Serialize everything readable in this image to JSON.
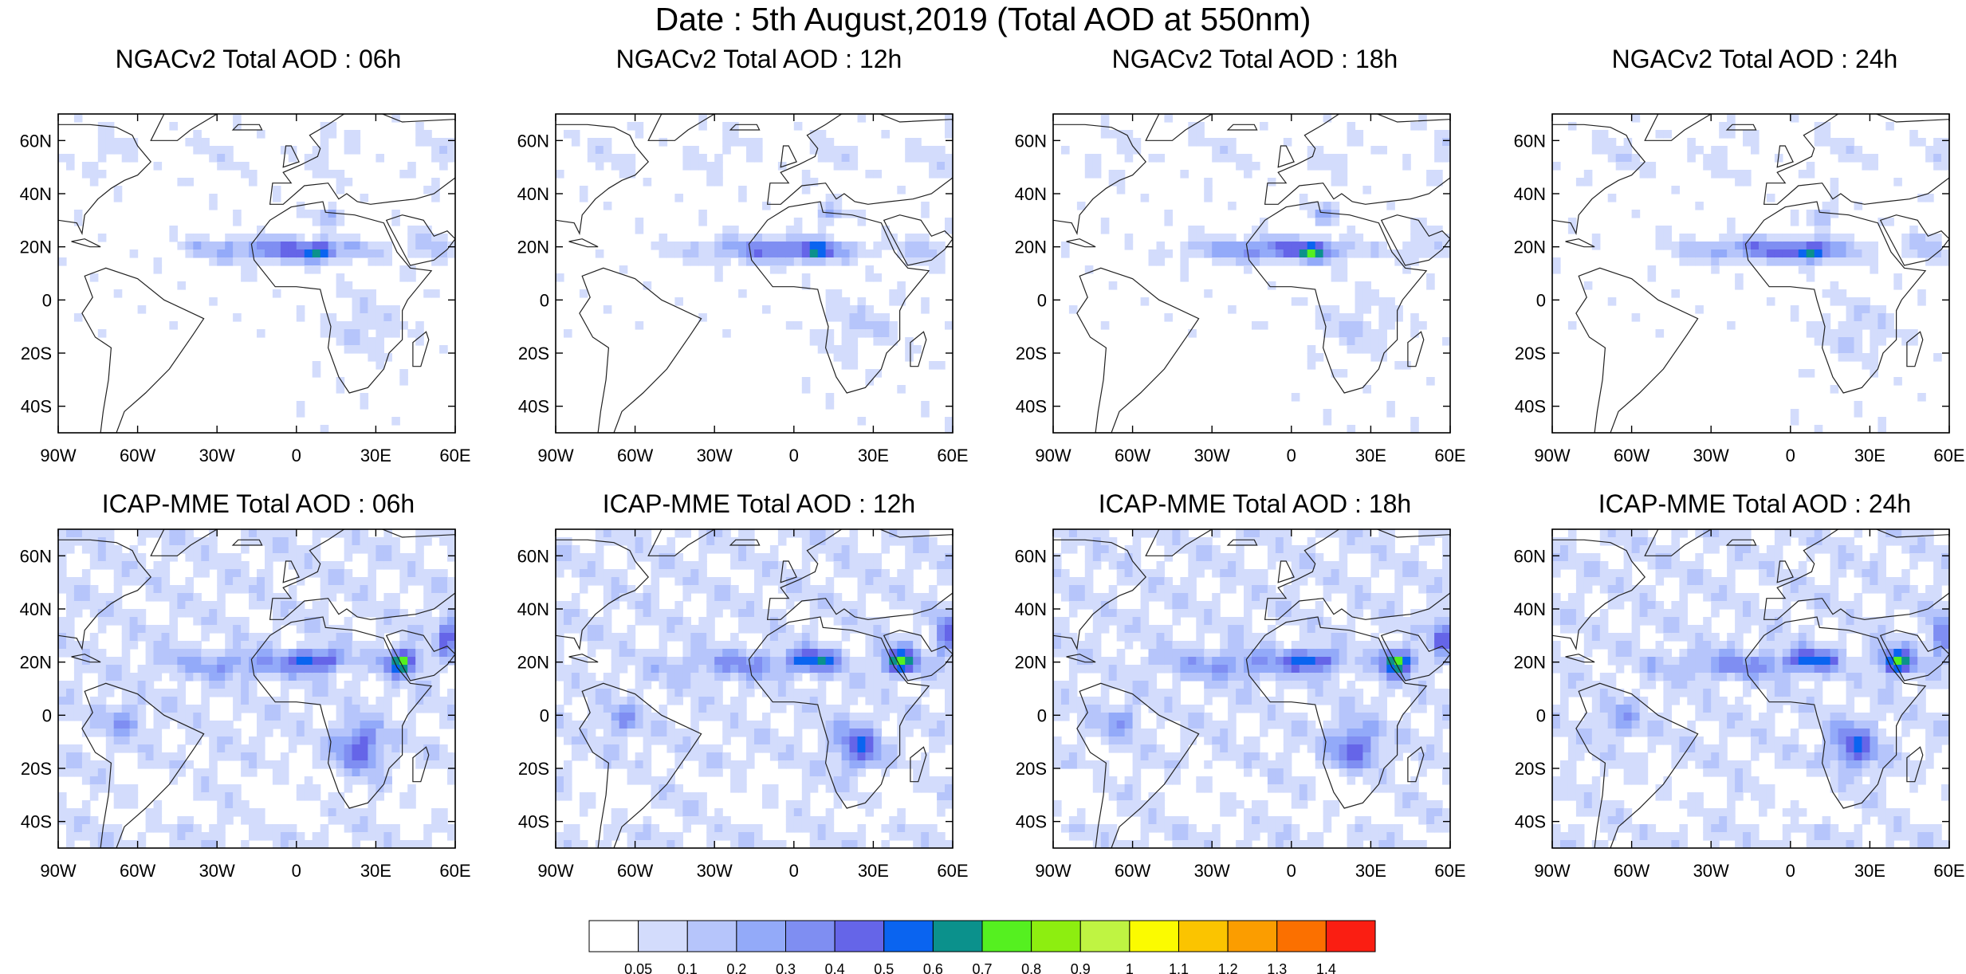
{
  "title": "Date : 5th August,2019 (Total AOD at 550nm)",
  "panels": [
    {
      "title": "NGACv2 Total AOD : 06h",
      "model": "NGACv2",
      "lead": 6
    },
    {
      "title": "NGACv2 Total AOD : 12h",
      "model": "NGACv2",
      "lead": 12
    },
    {
      "title": "NGACv2 Total AOD : 18h",
      "model": "NGACv2",
      "lead": 18
    },
    {
      "title": "NGACv2 Total AOD : 24h",
      "model": "NGACv2",
      "lead": 24
    },
    {
      "title": "ICAP-MME Total AOD : 06h",
      "model": "ICAP-MME",
      "lead": 6
    },
    {
      "title": "ICAP-MME Total AOD : 12h",
      "model": "ICAP-MME",
      "lead": 12
    },
    {
      "title": "ICAP-MME Total AOD : 18h",
      "model": "ICAP-MME",
      "lead": 18
    },
    {
      "title": "ICAP-MME Total AOD : 24h",
      "model": "ICAP-MME",
      "lead": 24
    }
  ],
  "map_extent": {
    "lon": [
      -90,
      60
    ],
    "lat": [
      -50,
      70
    ]
  },
  "lat_ticks": [
    {
      "value": 60,
      "label": "60N"
    },
    {
      "value": 40,
      "label": "40N"
    },
    {
      "value": 20,
      "label": "20N"
    },
    {
      "value": 0,
      "label": "0"
    },
    {
      "value": -20,
      "label": "20S"
    },
    {
      "value": -40,
      "label": "40S"
    }
  ],
  "lon_ticks": [
    {
      "value": -90,
      "label": "90W"
    },
    {
      "value": -60,
      "label": "60W"
    },
    {
      "value": -30,
      "label": "30W"
    },
    {
      "value": 0,
      "label": "0"
    },
    {
      "value": 30,
      "label": "30E"
    },
    {
      "value": 60,
      "label": "60E"
    }
  ],
  "colorbar": {
    "colors": [
      "#ffffff",
      "#d3dcfc",
      "#b6c5fb",
      "#93aaf9",
      "#7f8ef2",
      "#6565e8",
      "#0a64f0",
      "#0b918c",
      "#55f020",
      "#8dee10",
      "#bff442",
      "#fbfb00",
      "#fbc400",
      "#fb9d00",
      "#fb7000",
      "#fa1e12"
    ],
    "labels": [
      "0.05",
      "0.1",
      "0.2",
      "0.3",
      "0.4",
      "0.5",
      "0.6",
      "0.7",
      "0.8",
      "0.9",
      "1",
      "1.1",
      "1.2",
      "1.3",
      "1.4"
    ]
  }
}
